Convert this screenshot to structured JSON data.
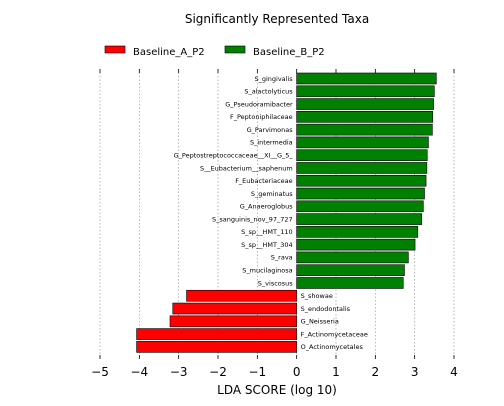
{
  "chart_data": {
    "type": "bar",
    "orientation": "horizontal",
    "title": "Significantly Represented Taxa",
    "xlabel": "LDA SCORE (log 10)",
    "ylabel": "",
    "xlim": [
      -5,
      4
    ],
    "xticks": [
      -5,
      -4,
      -3,
      -2,
      -1,
      0,
      1,
      2,
      3,
      4
    ],
    "grid": "vertical dotted",
    "legend_position": "top",
    "series": [
      {
        "name": "Baseline_A_P2",
        "color": "#ff0000"
      },
      {
        "name": "Baseline_B_P2",
        "color": "#008000"
      }
    ],
    "bars": [
      {
        "label": "S_gingivalis",
        "value": 3.55,
        "group": "Baseline_B_P2"
      },
      {
        "label": "S_alactolyticus",
        "value": 3.5,
        "group": "Baseline_B_P2"
      },
      {
        "label": "G_Pseudoramibacter",
        "value": 3.48,
        "group": "Baseline_B_P2"
      },
      {
        "label": "F_Peptoniphilaceae",
        "value": 3.46,
        "group": "Baseline_B_P2"
      },
      {
        "label": "G_Parvimonas",
        "value": 3.45,
        "group": "Baseline_B_P2"
      },
      {
        "label": "S_intermedia",
        "value": 3.35,
        "group": "Baseline_B_P2"
      },
      {
        "label": "G_Peptostreptococcaceae__XI__G_5_",
        "value": 3.32,
        "group": "Baseline_B_P2"
      },
      {
        "label": "S__Eubacterium__saphenum",
        "value": 3.31,
        "group": "Baseline_B_P2"
      },
      {
        "label": "F_Eubacteriaceae",
        "value": 3.29,
        "group": "Baseline_B_P2"
      },
      {
        "label": "S_geminatus",
        "value": 3.25,
        "group": "Baseline_B_P2"
      },
      {
        "label": "G_Anaeroglobus",
        "value": 3.22,
        "group": "Baseline_B_P2"
      },
      {
        "label": "S_sanguinis_nov_97_727",
        "value": 3.18,
        "group": "Baseline_B_P2"
      },
      {
        "label": "S_sp__HMT_110",
        "value": 3.08,
        "group": "Baseline_B_P2"
      },
      {
        "label": "S_sp__HMT_304",
        "value": 3.01,
        "group": "Baseline_B_P2"
      },
      {
        "label": "S_rava",
        "value": 2.84,
        "group": "Baseline_B_P2"
      },
      {
        "label": "S_mucilaginosa",
        "value": 2.74,
        "group": "Baseline_B_P2"
      },
      {
        "label": "S_viscosus",
        "value": 2.71,
        "group": "Baseline_B_P2"
      },
      {
        "label": "S_showae",
        "value": -2.8,
        "group": "Baseline_A_P2"
      },
      {
        "label": "S_endodontalis",
        "value": -3.15,
        "group": "Baseline_A_P2"
      },
      {
        "label": "G_Neisseria",
        "value": -3.22,
        "group": "Baseline_A_P2"
      },
      {
        "label": "F_Actinomycetaceae",
        "value": -4.07,
        "group": "Baseline_A_P2"
      },
      {
        "label": "O_Actinomycetales",
        "value": -4.07,
        "group": "Baseline_A_P2"
      }
    ]
  }
}
